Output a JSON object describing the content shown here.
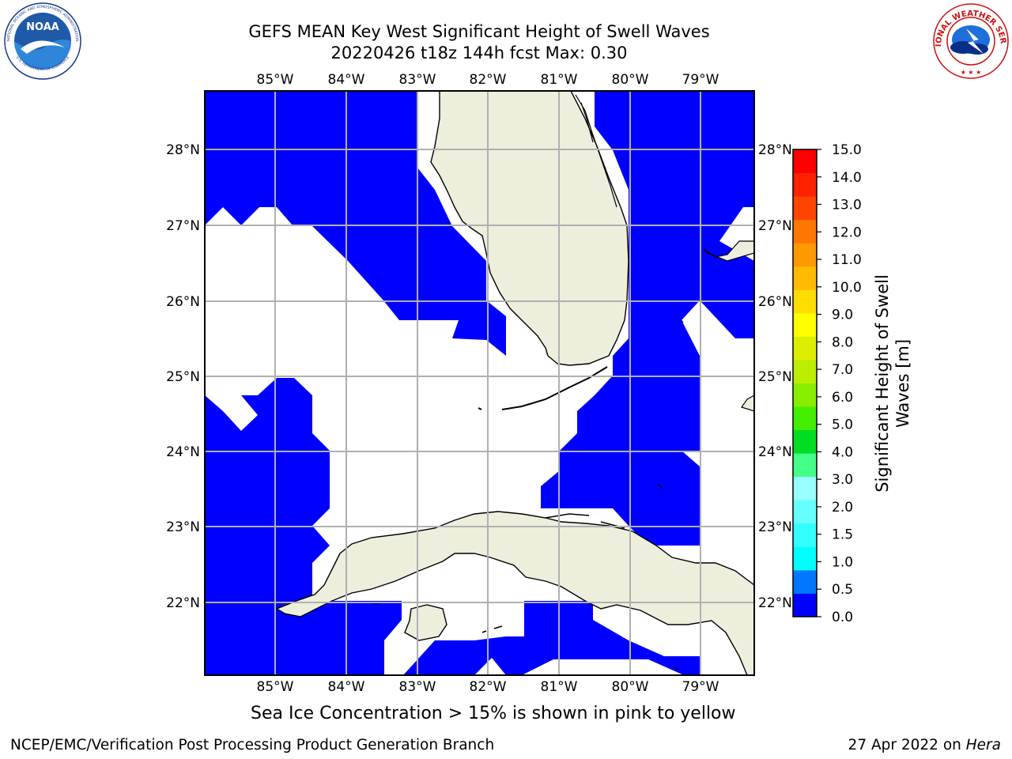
{
  "header": {
    "title_line1": "GEFS MEAN Key West Significant Height of Swell Waves",
    "title_line2": "20220426 t18z 144h fcst   Max: 0.30"
  },
  "logos": {
    "left": "NOAA",
    "left_ring_text": "NATIONAL OCEANIC AND ATMOSPHERIC ADMINISTRATION",
    "left_ring_text_bottom": "U.S. DEPARTMENT OF COMMERCE",
    "right_ring_text": "NATIONAL WEATHER SERVICE"
  },
  "map": {
    "lon_labels": [
      "85°W",
      "84°W",
      "83°W",
      "82°W",
      "81°W",
      "80°W",
      "79°W"
    ],
    "lat_labels": [
      "28°N",
      "27°N",
      "26°N",
      "25°N",
      "24°N",
      "23°N",
      "22°N"
    ],
    "colors": {
      "ocean_swell": "#0000ff",
      "land": "#eeeedd",
      "grid": "#b0b0b0",
      "no_data": "#ffffff"
    }
  },
  "colorbar": {
    "label": "Significant Height of Swell Waves [m]",
    "label_line1": "Significant Height of Swell",
    "label_line2": "Waves [m]",
    "ticks": [
      "0.0",
      "0.5",
      "1.0",
      "1.5",
      "2.0",
      "3.0",
      "4.0",
      "5.0",
      "6.0",
      "7.0",
      "8.0",
      "9.0",
      "10.0",
      "11.0",
      "12.0",
      "13.0",
      "14.0",
      "15.0"
    ],
    "colors": [
      "#0000ff",
      "#0077ff",
      "#00ffff",
      "#33ffff",
      "#66ffff",
      "#99ffff",
      "#44ff88",
      "#00dd22",
      "#44ee00",
      "#88ee00",
      "#bbee00",
      "#ddee00",
      "#ffff00",
      "#ffdd00",
      "#ffbb00",
      "#ff9900",
      "#ff7700",
      "#ff4400",
      "#ff2200",
      "#ff0000"
    ]
  },
  "note": "Sea Ice Concentration > 15% is shown in pink to yellow",
  "footer": {
    "left": "NCEP/EMC/Verification Post Processing Product Generation Branch",
    "right_date": "27 Apr 2022 on ",
    "right_host": "Hera"
  }
}
